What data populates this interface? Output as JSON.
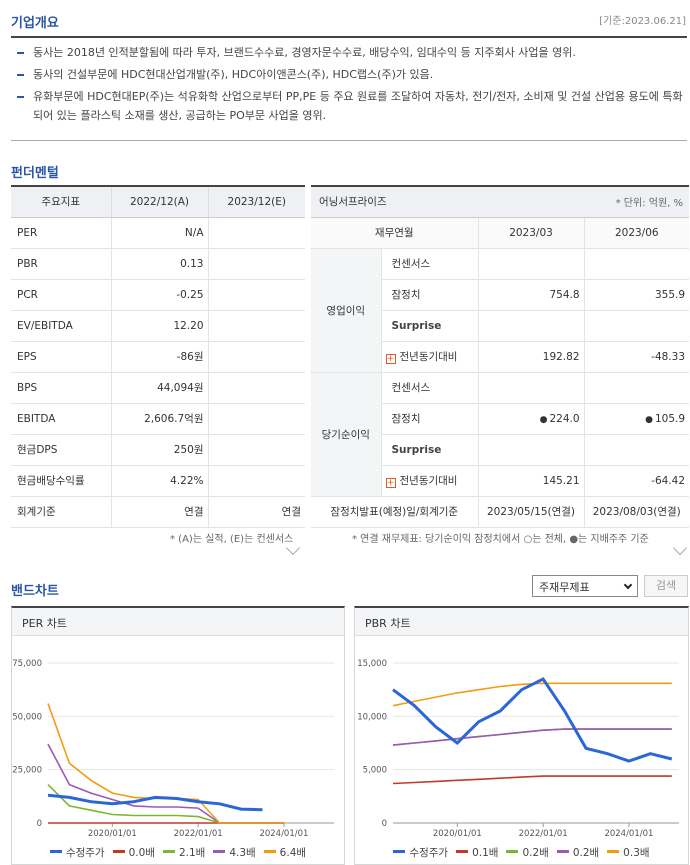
{
  "overview": {
    "title": "기업개요",
    "basis": "[기준:2023.06.21]",
    "items": [
      "동사는 2018년 인적분할됨에 따라 투자, 브랜드수수료, 경영자문수수료, 배당수익, 임대수익 등 지주회사 사업을 영위.",
      "동사의 건설부문에 HDC현대산업개발(주), HDC아이앤콘스(주), HDC랩스(주)가 있음.",
      "유화부문에 HDC현대EP(주)는 석유화학 산업으로부터 PP,PE 등 주요 원료를 조달하여 자동차, 전기/전자, 소비재 및 건설 산업용 용도에 특화되어 있는 플라스틱 소재를 생산, 공급하는 PO부문 사업을 영위."
    ]
  },
  "fundamental": {
    "title": "펀더멘털",
    "headers": [
      "주요지표",
      "2022/12(A)",
      "2023/12(E)"
    ],
    "rows": [
      {
        "label": "PER",
        "a": "N/A",
        "e": ""
      },
      {
        "label": "PBR",
        "a": "0.13",
        "e": ""
      },
      {
        "label": "PCR",
        "a": "-0.25",
        "e": ""
      },
      {
        "label": "EV/EBITDA",
        "a": "12.20",
        "e": ""
      },
      {
        "label": "EPS",
        "a": "-86원",
        "e": ""
      },
      {
        "label": "BPS",
        "a": "44,094원",
        "e": ""
      },
      {
        "label": "EBITDA",
        "a": "2,606.7억원",
        "e": ""
      },
      {
        "label": "현금DPS",
        "a": "250원",
        "e": ""
      },
      {
        "label": "현금배당수익률",
        "a": "4.22%",
        "e": ""
      },
      {
        "label": "회계기준",
        "a": "연결",
        "e": "연결"
      }
    ],
    "note": "* (A)는 실적, (E)는 컨센서스"
  },
  "earnings": {
    "title": "어닝서프라이즈",
    "unit": "* 단위: 억원, %",
    "headers": [
      "재무연월",
      "2023/03",
      "2023/06"
    ],
    "groups": [
      {
        "name": "영업이익",
        "rows": [
          {
            "label": "컨센서스",
            "v1": "",
            "v2": ""
          },
          {
            "label": "잠정치",
            "v1": "754.8",
            "v2": "355.9"
          },
          {
            "label": "Surprise",
            "v1": "",
            "v2": ""
          },
          {
            "label": "전년동기대비",
            "v1": "192.82",
            "v2": "-48.33"
          }
        ]
      },
      {
        "name": "당기순이익",
        "rows": [
          {
            "label": "컨센서스",
            "v1": "",
            "v2": ""
          },
          {
            "label": "잠정치",
            "v1": "224.0",
            "v2": "105.9"
          },
          {
            "label": "Surprise",
            "v1": "",
            "v2": ""
          },
          {
            "label": "전년동기대비",
            "v1": "145.21",
            "v2": "-64.42"
          }
        ]
      }
    ],
    "footer": {
      "label": "잠정치발표(예정)일/회계기준",
      "v1": "2023/05/15(연결)",
      "v2": "2023/08/03(연결)"
    },
    "note": "* 연결 재무제표: 당기순이익 잠정치에서 ○는 전체, ●는 지배주주 기준"
  },
  "band": {
    "title": "밴드차트",
    "select_value": "주재무제표",
    "search_label": "검색"
  },
  "chart_data": [
    {
      "type": "line",
      "title": "PER 차트",
      "x_ticks": [
        "2020/01/01",
        "2022/01/01",
        "2024/01/01"
      ],
      "y_ticks": [
        "75,000",
        "50,000",
        "25,000",
        "0"
      ],
      "ylim": [
        0,
        75000
      ],
      "x_range": [
        "2018/07",
        "2025/03"
      ],
      "x": [
        "2018/07",
        "2019/01",
        "2019/07",
        "2020/01",
        "2020/07",
        "2021/01",
        "2021/07",
        "2022/01",
        "2022/07",
        "2023/01",
        "2023/07",
        "2024/01"
      ],
      "series": [
        {
          "name": "수정주가",
          "color": "#2b66d9",
          "values": [
            13000,
            12000,
            10000,
            9000,
            10000,
            12000,
            11500,
            10000,
            9000,
            6500,
            6200,
            null
          ]
        },
        {
          "name": "0.0배",
          "color": "#c0392b",
          "values": [
            0,
            0,
            0,
            0,
            0,
            0,
            0,
            0,
            0,
            0,
            0,
            0
          ]
        },
        {
          "name": "2.1배",
          "color": "#7cb82f",
          "values": [
            18000,
            8000,
            6000,
            4000,
            3500,
            3500,
            3500,
            3000,
            0,
            0,
            0,
            0
          ]
        },
        {
          "name": "4.3배",
          "color": "#9b59b6",
          "values": [
            37000,
            18000,
            14000,
            11000,
            8000,
            7500,
            7500,
            7000,
            0,
            0,
            0,
            0
          ]
        },
        {
          "name": "6.4배",
          "color": "#f39c12",
          "values": [
            56000,
            28000,
            20000,
            14000,
            12000,
            11500,
            11500,
            11000,
            0,
            0,
            0,
            0
          ]
        }
      ]
    },
    {
      "type": "line",
      "title": "PBR 차트",
      "x_ticks": [
        "2020/01/01",
        "2022/01/01",
        "2024/01/01"
      ],
      "y_ticks": [
        "15,000",
        "10,000",
        "5,000",
        "0"
      ],
      "ylim": [
        0,
        15000
      ],
      "x_range": [
        "2018/07",
        "2025/03"
      ],
      "x": [
        "2018/07",
        "2019/01",
        "2019/07",
        "2020/01",
        "2020/07",
        "2021/01",
        "2021/07",
        "2022/01",
        "2022/07",
        "2023/01",
        "2023/07",
        "2024/01",
        "2024/07",
        "2025/01"
      ],
      "series": [
        {
          "name": "수정주가",
          "color": "#2b66d9",
          "values": [
            12500,
            11000,
            9000,
            7500,
            9500,
            10500,
            12500,
            13500,
            10500,
            7000,
            6500,
            5800,
            6500,
            6000
          ]
        },
        {
          "name": "0.1배",
          "color": "#c0392b",
          "values": [
            3700,
            3800,
            3900,
            4000,
            4100,
            4200,
            4300,
            4400,
            4400,
            4400,
            4400,
            4400,
            4400,
            4400
          ]
        },
        {
          "name": "0.2배",
          "color": "#7cb82f",
          "values": [
            7300,
            7500,
            7700,
            7900,
            8100,
            8300,
            8500,
            8700,
            8800,
            8800,
            8800,
            8800,
            8800,
            8800
          ]
        },
        {
          "name": "0.2배",
          "color": "#9b59b6",
          "values": [
            7300,
            7500,
            7700,
            7900,
            8100,
            8300,
            8500,
            8700,
            8800,
            8800,
            8800,
            8800,
            8800,
            8800
          ]
        },
        {
          "name": "0.3배",
          "color": "#f39c12",
          "values": [
            11000,
            11400,
            11800,
            12200,
            12500,
            12800,
            13000,
            13100,
            13100,
            13100,
            13100,
            13100,
            13100,
            13100
          ]
        }
      ]
    }
  ]
}
